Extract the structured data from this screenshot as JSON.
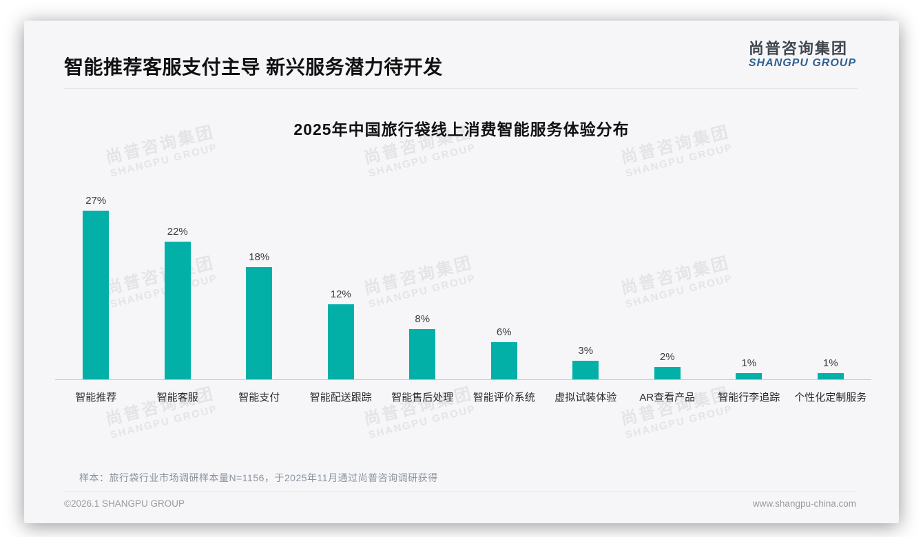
{
  "page": {
    "header_title": "智能推荐客服支付主导 新兴服务潜力待开发",
    "logo": {
      "cn": "尚普咨询集团",
      "en": "SHANGPU GROUP"
    },
    "watermark": {
      "cn": "尚普咨询集团",
      "en": "SHANGPU GROUP"
    },
    "source_note": "样本：旅行袋行业市场调研样本量N=1156，于2025年11月通过尚普咨询调研获得",
    "footer_left": "©2026.1 SHANGPU GROUP",
    "footer_right": "www.shangpu-china.com"
  },
  "colors": {
    "bar": "#02B0A8",
    "logo_blue": "#2d5f92",
    "title_text": "#111111"
  },
  "chart_data": {
    "type": "bar",
    "title": "2025年中国旅行袋线上消费智能服务体验分布",
    "categories": [
      "智能推荐",
      "智能客服",
      "智能支付",
      "智能配送跟踪",
      "智能售后处理",
      "智能评价系统",
      "虚拟试装体验",
      "AR查看产品",
      "智能行李追踪",
      "个性化定制服务"
    ],
    "values": [
      27,
      22,
      18,
      12,
      8,
      6,
      3,
      2,
      1,
      1
    ],
    "value_labels": [
      "27%",
      "22%",
      "18%",
      "12%",
      "8%",
      "6%",
      "3%",
      "2%",
      "1%",
      "1%"
    ],
    "unit": "%",
    "xlabel": "",
    "ylabel": "",
    "ylim": [
      0,
      30
    ],
    "grid": false,
    "legend": false,
    "bar_color": "#02B0A8"
  }
}
